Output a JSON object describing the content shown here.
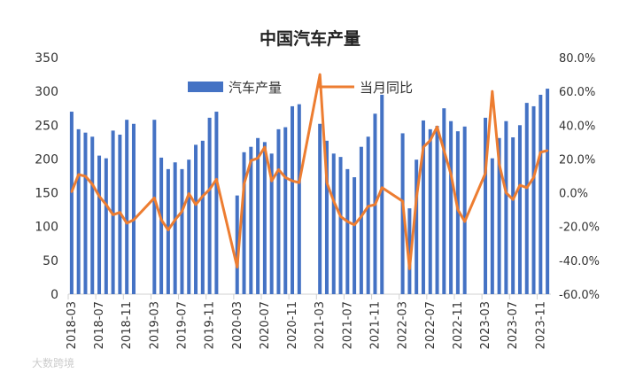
{
  "chart_data": {
    "type": "bar+line",
    "title": "中国汽车产量",
    "watermark": "大数跨境",
    "categories": [
      "2018-03",
      "2018-04",
      "2018-05",
      "2018-06",
      "2018-07",
      "2018-08",
      "2018-09",
      "2018-10",
      "2018-11",
      "2018-12",
      "2019-01",
      "2019-02",
      "2019-03",
      "2019-04",
      "2019-05",
      "2019-06",
      "2019-07",
      "2019-08",
      "2019-09",
      "2019-10",
      "2019-11",
      "2019-12",
      "2020-01",
      "2020-02",
      "2020-03",
      "2020-04",
      "2020-05",
      "2020-06",
      "2020-07",
      "2020-08",
      "2020-09",
      "2020-10",
      "2020-11",
      "2020-12",
      "2021-01",
      "2021-02",
      "2021-03",
      "2021-04",
      "2021-05",
      "2021-06",
      "2021-07",
      "2021-08",
      "2021-09",
      "2021-10",
      "2021-11",
      "2021-12",
      "2022-01",
      "2022-02",
      "2022-03",
      "2022-04",
      "2022-05",
      "2022-06",
      "2022-07",
      "2022-08",
      "2022-09",
      "2022-10",
      "2022-11",
      "2022-12",
      "2023-01",
      "2023-02",
      "2023-03",
      "2023-04",
      "2023-05",
      "2023-06",
      "2023-07",
      "2023-08",
      "2023-09",
      "2023-10",
      "2023-11",
      "2023-12"
    ],
    "series": [
      {
        "name": "汽车产量",
        "type": "bar",
        "axis": "left",
        "color": "#4472C4",
        "values": [
          270,
          244,
          239,
          233,
          205,
          201,
          242,
          236,
          258,
          252,
          null,
          null,
          258,
          202,
          185,
          195,
          185,
          199,
          221,
          227,
          261,
          270,
          null,
          null,
          146,
          210,
          218,
          231,
          225,
          208,
          244,
          247,
          278,
          281,
          null,
          null,
          252,
          227,
          208,
          203,
          185,
          173,
          218,
          233,
          267,
          295,
          null,
          null,
          238,
          127,
          199,
          257,
          244,
          249,
          275,
          256,
          241,
          248,
          null,
          null,
          261,
          201,
          231,
          256,
          232,
          250,
          283,
          278,
          295,
          304
        ]
      },
      {
        "name": "当月同比",
        "type": "line",
        "axis": "right",
        "unit": "%",
        "color": "#ED7D31",
        "values": [
          0.5,
          10.8,
          9.8,
          5,
          -2,
          -7,
          -13,
          -11.6,
          -18,
          -16,
          null,
          null,
          -3,
          -16,
          -22,
          -16,
          -11,
          -0.5,
          -7,
          -2,
          2,
          8,
          null,
          null,
          -44,
          5,
          19,
          20.5,
          27,
          7,
          13.7,
          9,
          7,
          6,
          null,
          null,
          70,
          6,
          -5,
          -14,
          -17,
          -19,
          -14,
          -8,
          -7,
          3,
          null,
          null,
          -5,
          -45,
          -3,
          27,
          31,
          39,
          25,
          11,
          -10,
          -17,
          null,
          null,
          11.5,
          60,
          17,
          0,
          -4,
          4.5,
          3,
          9,
          24,
          25
        ]
      }
    ],
    "y_left": {
      "range": [
        0,
        350
      ],
      "ticks": [
        "0",
        "50",
        "100",
        "150",
        "200",
        "250",
        "300",
        "350"
      ]
    },
    "y_right": {
      "range": [
        -60,
        80
      ],
      "ticks": [
        "-60.0%",
        "-40.0%",
        "-20.0%",
        "0.0%",
        "20.0%",
        "40.0%",
        "60.0%",
        "80.0%"
      ]
    },
    "x_tick_labels": [
      "2018-03",
      "2018-07",
      "2018-11",
      "2019-03",
      "2019-07",
      "2019-11",
      "2020-03",
      "2020-07",
      "2020-11",
      "2021-03",
      "2021-07",
      "2021-11",
      "2022-03",
      "2022-07",
      "2022-11",
      "2023-03",
      "2023-07",
      "2023-11"
    ],
    "grid": false,
    "legend_position": "top-center"
  }
}
